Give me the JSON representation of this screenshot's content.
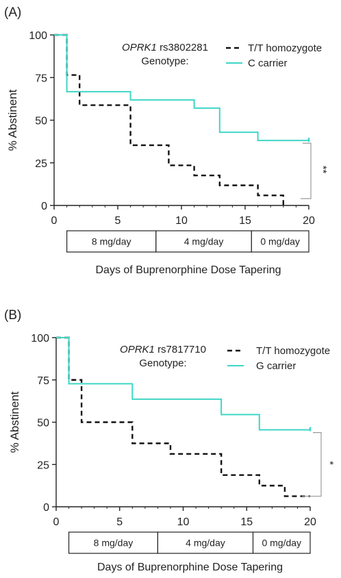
{
  "chart_data": [
    {
      "panel_label": "(A)",
      "type": "line",
      "step": true,
      "ylabel": "% Abstinent",
      "xlabel": "Days of Buprenorphine Dose Tapering",
      "xlim": [
        0,
        20
      ],
      "ylim": [
        0,
        100
      ],
      "xticks": [
        0,
        5,
        10,
        15,
        20
      ],
      "yticks": [
        0,
        25,
        50,
        75,
        100
      ],
      "legend": {
        "gene": "OPRK1",
        "snp": "rs3802281",
        "label": "Genotype:",
        "placement": "top-right"
      },
      "series": [
        {
          "name": "T/T homozygote",
          "color": "#111111",
          "dashed": true,
          "x": [
            0,
            1,
            2,
            6,
            9,
            11,
            13,
            16,
            18
          ],
          "y": [
            100,
            76.5,
            58.8,
            35.3,
            23.5,
            17.6,
            11.8,
            5.9,
            0
          ]
        },
        {
          "name": "C carrier",
          "color": "#3ed6c6",
          "dashed": false,
          "x": [
            0,
            1,
            6,
            11,
            13,
            16,
            20
          ],
          "y": [
            100,
            66.7,
            61.9,
            57.1,
            42.9,
            38.1,
            38.1
          ]
        }
      ],
      "significance": "**",
      "dose_bar": [
        {
          "label": "8 mg/day",
          "start": 1,
          "end": 8
        },
        {
          "label": "4 mg/day",
          "start": 8,
          "end": 15.5
        },
        {
          "label": "0 mg/day",
          "start": 15.5,
          "end": 20
        }
      ]
    },
    {
      "panel_label": "(B)",
      "type": "line",
      "step": true,
      "ylabel": "% Abstinent",
      "xlabel": "Days of Buprenorphine Dose Tapering",
      "xlim": [
        0,
        20
      ],
      "ylim": [
        0,
        100
      ],
      "xticks": [
        0,
        5,
        10,
        15,
        20
      ],
      "yticks": [
        0,
        25,
        50,
        75,
        100
      ],
      "legend": {
        "gene": "OPRK1",
        "snp": "rs7817710",
        "label": "Genotype:",
        "placement": "top-right"
      },
      "series": [
        {
          "name": "T/T homozygote",
          "color": "#111111",
          "dashed": true,
          "x": [
            0,
            1,
            2,
            6,
            9,
            13,
            16,
            18,
            20
          ],
          "y": [
            100,
            75,
            50,
            37.5,
            31.25,
            18.75,
            12.5,
            6.25,
            6.25
          ]
        },
        {
          "name": "G carrier",
          "color": "#3ed6c6",
          "dashed": false,
          "x": [
            0,
            1,
            6,
            13,
            16,
            20
          ],
          "y": [
            100,
            72.7,
            63.6,
            54.5,
            45.5,
            45.5
          ]
        }
      ],
      "significance": "*",
      "dose_bar": [
        {
          "label": "8 mg/day",
          "start": 1,
          "end": 8
        },
        {
          "label": "4 mg/day",
          "start": 8,
          "end": 15.5
        },
        {
          "label": "0 mg/day",
          "start": 15.5,
          "end": 20
        }
      ]
    }
  ]
}
